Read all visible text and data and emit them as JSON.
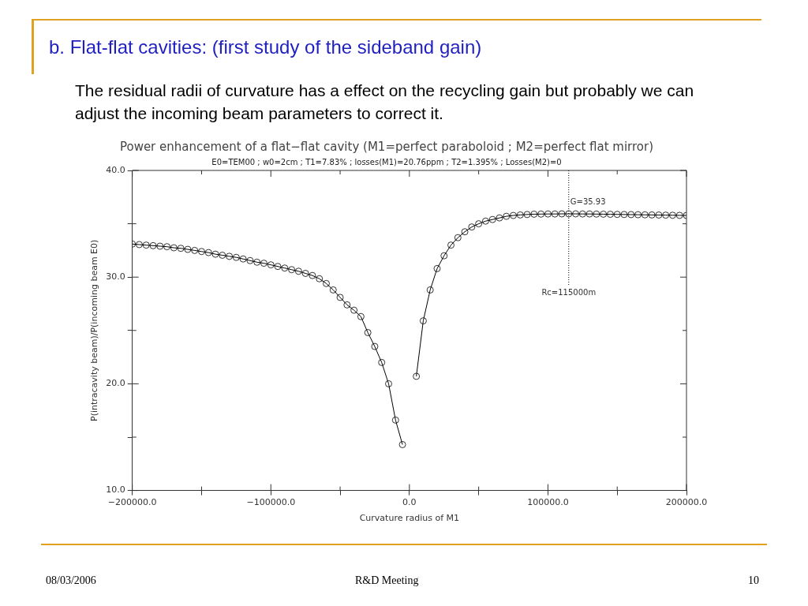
{
  "chart_data": {
    "type": "line",
    "title": "Power enhancement of a flat−flat cavity (M1=perfect paraboloid ; M2=perfect flat mirror)",
    "subtitle": "E0=TEM00 ; w0=2cm ; T1=7.83% ; losses(M1)=20.76ppm ; T2=1.395% ; Losses(M2)=0",
    "xlabel": "Curvature radius of M1",
    "ylabel": "P(intracavity beam)/P(incoming beam E0)",
    "x": [
      -200000,
      -195000,
      -190000,
      -185000,
      -180000,
      -175000,
      -170000,
      -165000,
      -160000,
      -155000,
      -150000,
      -145000,
      -140000,
      -135000,
      -130000,
      -125000,
      -120000,
      -115000,
      -110000,
      -105000,
      -100000,
      -95000,
      -90000,
      -85000,
      -80000,
      -75000,
      -70000,
      -65000,
      -60000,
      -55000,
      -50000,
      -45000,
      -40000,
      -35000,
      -30000,
      -25000,
      -20000,
      -15000,
      -10000,
      -5000,
      0,
      5000,
      10000,
      15000,
      20000,
      25000,
      30000,
      35000,
      40000,
      45000,
      50000,
      55000,
      60000,
      65000,
      70000,
      75000,
      80000,
      85000,
      90000,
      95000,
      100000,
      105000,
      110000,
      115000,
      120000,
      125000,
      130000,
      135000,
      140000,
      145000,
      150000,
      155000,
      160000,
      165000,
      170000,
      175000,
      180000,
      185000,
      190000,
      195000,
      200000
    ],
    "series": [
      {
        "color": "#000000",
        "values": [
          33.1,
          33.05,
          33.0,
          32.95,
          32.9,
          32.85,
          32.75,
          32.7,
          32.6,
          32.5,
          32.4,
          32.3,
          32.15,
          32.05,
          31.95,
          31.85,
          31.7,
          31.55,
          31.4,
          31.3,
          31.15,
          31.0,
          30.85,
          30.7,
          30.55,
          30.35,
          30.15,
          29.85,
          29.4,
          28.8,
          28.1,
          27.4,
          26.9,
          26.3,
          24.8,
          23.5,
          22.0,
          20.0,
          16.6,
          14.3,
          null,
          20.7,
          25.9,
          28.8,
          30.8,
          32.0,
          33.0,
          33.7,
          34.25,
          34.7,
          35.0,
          35.25,
          35.4,
          35.55,
          35.7,
          35.78,
          35.83,
          35.87,
          35.9,
          35.91,
          35.92,
          35.92,
          35.93,
          35.93,
          35.93,
          35.92,
          35.92,
          35.91,
          35.9,
          35.89,
          35.88,
          35.87,
          35.86,
          35.85,
          35.84,
          35.83,
          35.82,
          35.81,
          35.8,
          35.79,
          35.78
        ]
      }
    ],
    "xlim": [
      -200000,
      200000
    ],
    "xticks": [
      {
        "value": -200000,
        "label": "−200000.0"
      },
      {
        "value": -150000,
        "label": null
      },
      {
        "value": -100000,
        "label": "−100000.0"
      },
      {
        "value": -50000,
        "label": null
      },
      {
        "value": 0,
        "label": "0.0"
      },
      {
        "value": 50000,
        "label": null
      },
      {
        "value": 100000,
        "label": "100000.0"
      },
      {
        "value": 150000,
        "label": null
      },
      {
        "value": 200000,
        "label": "200000.0"
      }
    ],
    "ylim": [
      10,
      40
    ],
    "yticks": [
      {
        "value": 10,
        "label": "10.0"
      },
      {
        "value": 15,
        "label": null
      },
      {
        "value": 20,
        "label": "20.0"
      },
      {
        "value": 25,
        "label": null
      },
      {
        "value": 30,
        "label": "30.0"
      },
      {
        "value": 35,
        "label": null
      },
      {
        "value": 40,
        "label": "40.0"
      }
    ],
    "marker": "circle",
    "line_style": "solid",
    "grid": false,
    "legend": false,
    "ref_lines": [
      {
        "axis": "x",
        "value": 115000,
        "label": "Rc=115000m",
        "line_style": "dotted",
        "color": "#000000"
      }
    ],
    "annotations": [
      "b.  Flat-flat cavities: (first study of the sideband gain)",
      "The residual radii of curvature has a effect on the recycling gain but probably we can adjust the incoming beam parameters to correct it.",
      "08/03/2006",
      "R&D Meeting",
      "10",
      {
        "text": "G=35.93",
        "x": 115000,
        "y": 35.93
      }
    ]
  }
}
